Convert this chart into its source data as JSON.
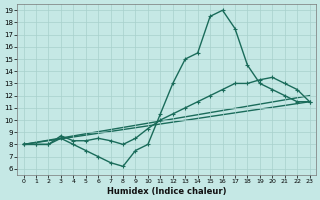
{
  "xlabel": "Humidex (Indice chaleur)",
  "xlim": [
    -0.5,
    23.5
  ],
  "ylim": [
    5.5,
    19.5
  ],
  "yticks": [
    6,
    7,
    8,
    9,
    10,
    11,
    12,
    13,
    14,
    15,
    16,
    17,
    18,
    19
  ],
  "xticks": [
    0,
    1,
    2,
    3,
    4,
    5,
    6,
    7,
    8,
    9,
    10,
    11,
    12,
    13,
    14,
    15,
    16,
    17,
    18,
    19,
    20,
    21,
    22,
    23
  ],
  "bg_color": "#c5e8e5",
  "line_color": "#1a6b5a",
  "grid_color": "#a8d0cc",
  "lines": [
    {
      "x": [
        0,
        1,
        2,
        3,
        4,
        5,
        6,
        7,
        8,
        9,
        10,
        11,
        12,
        13,
        14,
        15,
        16,
        17,
        18,
        19,
        20,
        21,
        22,
        23
      ],
      "y": [
        8,
        8,
        8,
        8.5,
        8,
        7.5,
        7,
        6.5,
        6.2,
        7.5,
        8,
        10.5,
        13,
        15,
        15.5,
        18.5,
        19,
        17.5,
        14.5,
        13,
        12.5,
        12,
        11.5,
        11.5
      ],
      "marker": true
    },
    {
      "x": [
        0,
        1,
        2,
        3,
        4,
        5,
        6,
        7,
        8,
        9,
        10,
        11,
        12,
        13,
        14,
        15,
        16,
        17,
        18,
        19,
        20,
        21,
        22,
        23
      ],
      "y": [
        8,
        8,
        8,
        8.7,
        8.3,
        8.3,
        8.5,
        8.3,
        8,
        8.5,
        9.3,
        10,
        10.5,
        11,
        11.5,
        12,
        12.5,
        13,
        13,
        13.3,
        13.5,
        13,
        12.5,
        11.5
      ],
      "marker": true
    },
    {
      "x": [
        0,
        23
      ],
      "y": [
        8,
        11.5
      ],
      "marker": false
    },
    {
      "x": [
        0,
        23
      ],
      "y": [
        8,
        12.0
      ],
      "marker": false
    }
  ],
  "markersize": 3,
  "linewidth": 1.0
}
